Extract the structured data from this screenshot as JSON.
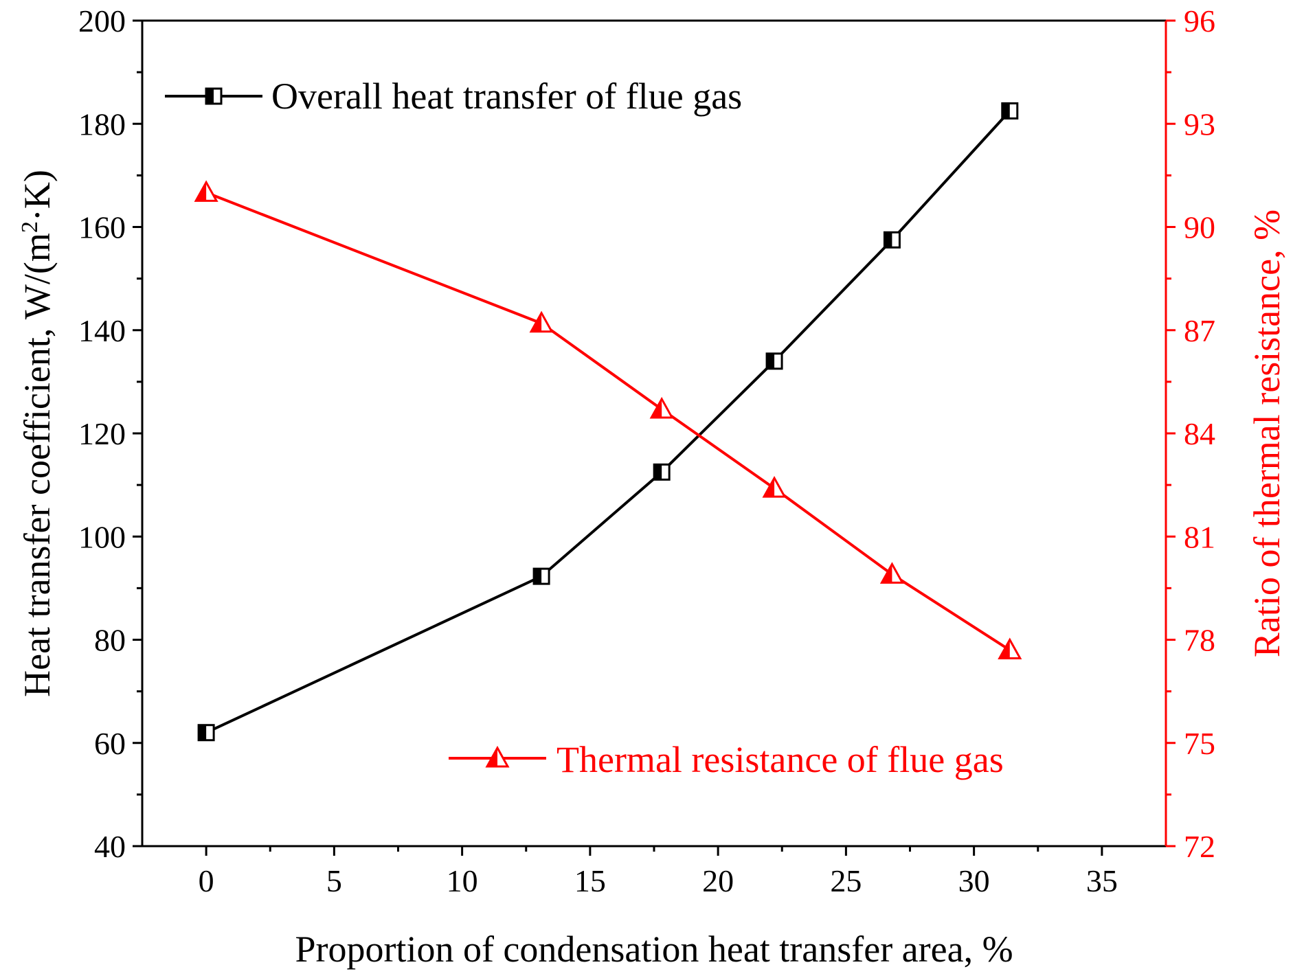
{
  "chart_data": {
    "type": "line",
    "xlabel": "Proportion of condensation heat transfer area, %",
    "ylabel_left": "Heat transfer coefficient,  W/(m",
    "ylabel_left_sup": "2",
    "ylabel_left_tail": "·K)",
    "ylabel_right": "Ratio of thermal resistance, %",
    "xlim": [
      -2.5,
      37.5
    ],
    "ylim_left": [
      40,
      200
    ],
    "ylim_right": [
      72,
      96
    ],
    "x_ticks": [
      0,
      5,
      10,
      15,
      20,
      25,
      30,
      35
    ],
    "y_left_ticks": [
      40,
      60,
      80,
      100,
      120,
      140,
      160,
      180,
      200
    ],
    "y_right_ticks": [
      72,
      75,
      78,
      81,
      84,
      87,
      90,
      93,
      96
    ],
    "grid": false,
    "legend_placement": [
      "top-left",
      "bottom-right"
    ],
    "series": [
      {
        "name": "Overall heat transfer of flue gas",
        "axis": "left",
        "color": "#000000",
        "marker": "half-filled-square",
        "x": [
          0,
          13.1,
          17.8,
          22.2,
          26.8,
          31.4
        ],
        "values": [
          62,
          92.3,
          112.5,
          134,
          157.5,
          182.5
        ]
      },
      {
        "name": "Thermal resistance of flue gas",
        "axis": "right",
        "color": "#ff0000",
        "marker": "half-filled-triangle",
        "x": [
          0,
          13.1,
          17.8,
          22.2,
          26.8,
          31.4
        ],
        "values": [
          91,
          87.2,
          84.7,
          82.4,
          79.9,
          77.7
        ]
      }
    ]
  }
}
